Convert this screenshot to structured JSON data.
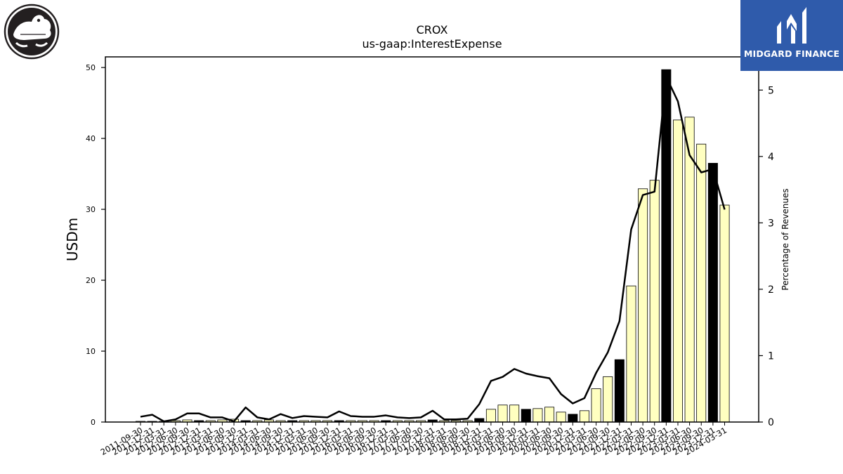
{
  "brand": {
    "name": "MIDGARD FINANCE",
    "primary_color": "#2f5bab"
  },
  "logo": {
    "icon": "crocodile-logo-icon"
  },
  "chart_data": {
    "type": "bar",
    "title": "CROX",
    "subtitle": "us-gaap:InterestExpense",
    "ylabel": "USDm",
    "y2label": "Percentage of Revenues",
    "ylim": [
      0,
      51.5
    ],
    "y2lim": [
      0,
      5.5
    ],
    "yticks": [
      0,
      10,
      20,
      30,
      40,
      50
    ],
    "y2ticks": [
      0,
      1,
      2,
      3,
      4,
      5
    ],
    "grid": false,
    "bar_colors": {
      "quarter": "#ffffc0",
      "fiscal_q4": "#000000"
    },
    "categories": [
      "2011-09-30",
      "2011-12-31",
      "2012-03-31",
      "2012-06-30",
      "2012-09-30",
      "2012-12-31",
      "2013-03-31",
      "2013-06-30",
      "2013-09-30",
      "2013-12-31",
      "2014-03-31",
      "2014-06-30",
      "2014-09-30",
      "2014-12-31",
      "2015-03-31",
      "2015-06-30",
      "2015-09-30",
      "2015-12-31",
      "2016-03-31",
      "2016-06-30",
      "2016-09-30",
      "2016-12-31",
      "2017-03-31",
      "2017-06-30",
      "2017-09-30",
      "2017-12-31",
      "2018-03-31",
      "2018-06-30",
      "2018-09-30",
      "2018-12-31",
      "2019-03-31",
      "2019-06-30",
      "2019-09-30",
      "2019-12-31",
      "2020-03-31",
      "2020-06-30",
      "2020-09-30",
      "2020-12-31",
      "2021-03-31",
      "2021-06-30",
      "2021-09-30",
      "2021-12-31",
      "2022-03-31",
      "2022-06-30",
      "2022-09-30",
      "2022-12-31",
      "2023-03-31",
      "2023-06-30",
      "2023-09-30",
      "2023-12-31",
      "2024-03-31"
    ],
    "series": [
      {
        "type": "bar",
        "axis": "left",
        "values": [
          0.1,
          0.1,
          0.1,
          0.2,
          0.3,
          0.2,
          0.2,
          0.3,
          0.4,
          0.2,
          0.2,
          0.3,
          0.2,
          0.2,
          0.2,
          0.2,
          0.2,
          0.2,
          0.2,
          0.2,
          0.2,
          0.2,
          0.2,
          0.2,
          0.2,
          0.3,
          0.2,
          0.2,
          0.2,
          0.5,
          1.8,
          2.4,
          2.4,
          1.8,
          1.9,
          2.1,
          1.4,
          1.1,
          1.6,
          4.7,
          6.4,
          8.8,
          19.2,
          32.9,
          34.1,
          49.7,
          42.6,
          43.0,
          39.2,
          36.5,
          30.6
        ],
        "fiscal_q4": [
          false,
          true,
          false,
          false,
          false,
          true,
          false,
          false,
          false,
          true,
          false,
          false,
          false,
          true,
          false,
          false,
          false,
          true,
          false,
          false,
          false,
          true,
          false,
          false,
          false,
          true,
          false,
          false,
          false,
          true,
          false,
          false,
          false,
          true,
          false,
          false,
          false,
          true,
          false,
          false,
          false,
          true,
          false,
          false,
          false,
          true,
          false,
          false,
          false,
          true,
          false
        ]
      },
      {
        "type": "line",
        "axis": "right",
        "values": [
          0.08,
          0.11,
          0.01,
          0.04,
          0.13,
          0.13,
          0.07,
          0.07,
          0.01,
          0.22,
          0.07,
          0.04,
          0.12,
          0.06,
          0.09,
          0.08,
          0.07,
          0.16,
          0.09,
          0.08,
          0.08,
          0.1,
          0.07,
          0.06,
          0.07,
          0.17,
          0.04,
          0.04,
          0.05,
          0.27,
          0.62,
          0.68,
          0.8,
          0.73,
          0.69,
          0.66,
          0.42,
          0.28,
          0.36,
          0.74,
          1.05,
          1.52,
          2.9,
          3.42,
          3.47,
          5.2,
          4.83,
          4.02,
          3.76,
          3.81,
          3.2
        ],
        "color": "#000000"
      }
    ]
  }
}
